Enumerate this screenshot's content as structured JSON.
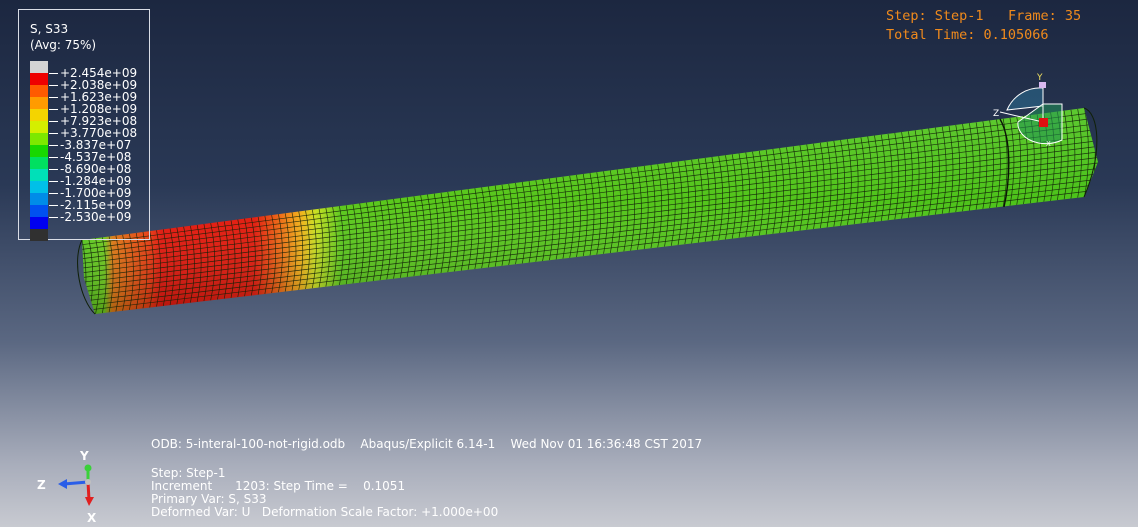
{
  "legend": {
    "title_line1": "S, S33",
    "title_line2": "(Avg: 75%)",
    "swatches": [
      "#d4d4d4",
      "#ee0000",
      "#ff5a00",
      "#ff9b00",
      "#f4d400",
      "#d4ef00",
      "#7de800",
      "#18d700",
      "#00e060",
      "#00e0b8",
      "#00c0e8",
      "#008ce8",
      "#0050f0",
      "#0000f0",
      "#303030"
    ],
    "values": [
      "+2.454e+09",
      "+2.038e+09",
      "+1.623e+09",
      "+1.208e+09",
      "+7.923e+08",
      "+3.770e+08",
      "-3.837e+07",
      "-4.537e+08",
      "-8.690e+08",
      "-1.284e+09",
      "-1.700e+09",
      "-2.115e+09",
      "-2.530e+09"
    ]
  },
  "frame_info": {
    "step_text": "Step: Step-1",
    "frame_text": "Frame: 35",
    "time_text": "Total Time: 0.105066"
  },
  "footer": {
    "odb_line": "ODB: 5-interal-100-not-rigid.odb    Abaqus/Explicit 6.14-1    Wed Nov 01 16:36:48 CST 2017",
    "step_line": "Step: Step-1",
    "increment_line": "Increment      1203: Step Time =    0.1051",
    "primary_line": "Primary Var: S, S33",
    "deformed_line": "Deformed Var: U   Deformation Scale Factor: +1.000e+00"
  },
  "triad": {
    "x": "X",
    "y": "Y",
    "z": "Z"
  },
  "view_triad": {
    "x": "X",
    "y": "Y",
    "z": "Z"
  },
  "colors": {
    "mesh_green": "#4fc51a",
    "mesh_red": "#e61a0a",
    "mesh_orange": "#f06018",
    "info_orange": "#f08a1c"
  }
}
